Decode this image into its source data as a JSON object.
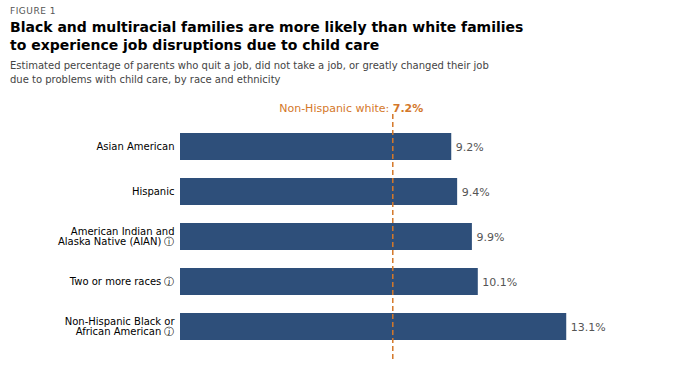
{
  "chart_data": {
    "type": "bar",
    "orientation": "horizontal",
    "figure_label": "FIGURE 1",
    "title": "Black and multiracial families are more likely than white families\nto experience job disruptions due to child care",
    "subtitle": "Estimated percentage of parents who quit a job, did not take a job, or greatly changed their job\ndue to problems with child care, by race and ethnicity",
    "categories": [
      "Asian American",
      "Hispanic",
      "American Indian and\nAlaska Native (AIAN) ⓘ",
      "Two or more races ⓙ",
      "Non-Hispanic Black or\nAfrican American ⓙ"
    ],
    "values": [
      9.2,
      9.4,
      9.9,
      10.1,
      13.1
    ],
    "value_labels": [
      "9.2%",
      "9.4%",
      "9.9%",
      "10.1%",
      "13.1%"
    ],
    "data_labels": true,
    "color": "#2e4f7a",
    "xlim": [
      0,
      15.5
    ],
    "tick_labels": "y",
    "grid": false,
    "reference_line": {
      "value": 7.2,
      "label": "Non-Hispanic white: ",
      "value_label": "7.2%",
      "color": "#d4782a"
    }
  }
}
